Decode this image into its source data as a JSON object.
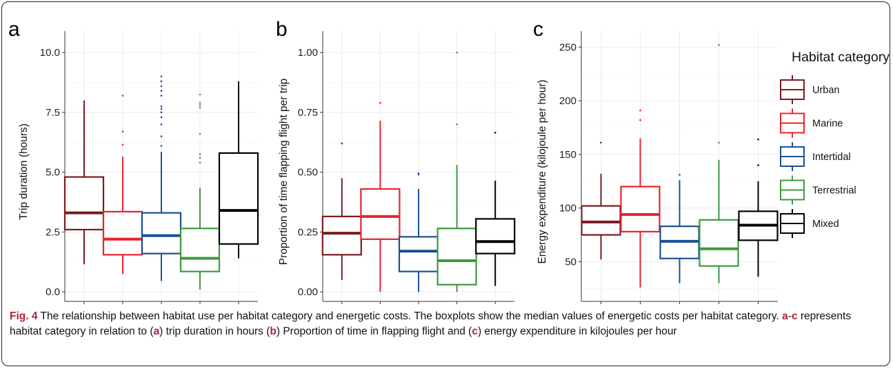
{
  "chart_data": [
    {
      "type": "box",
      "panel_letter": "a",
      "ylabel": "Trip duration (hours)",
      "ylim": [
        -0.4,
        10.9
      ],
      "yticks": [
        0.0,
        2.5,
        5.0,
        7.5,
        10.0
      ],
      "ytick_labels": [
        "0.0",
        "2.5",
        "5.0",
        "7.5",
        "10.0"
      ],
      "grid": true,
      "categories": [
        "Urban",
        "Marine",
        "Intertidal",
        "Terrestrial",
        "Mixed"
      ],
      "boxes": [
        {
          "lower_whisker": 1.15,
          "q1": 2.6,
          "median": 3.3,
          "q3": 4.8,
          "upper_whisker": 8.0,
          "outliers": []
        },
        {
          "lower_whisker": 0.75,
          "q1": 1.55,
          "median": 2.2,
          "q3": 3.35,
          "upper_whisker": 5.65,
          "outliers": [
            6.15,
            6.7,
            8.2
          ]
        },
        {
          "lower_whisker": 0.45,
          "q1": 1.6,
          "median": 2.35,
          "q3": 3.3,
          "upper_whisker": 5.85,
          "outliers": [
            6.1,
            6.5,
            7.0,
            7.3,
            7.5,
            7.65,
            7.75,
            8.2,
            8.4,
            8.6,
            8.8,
            9.0
          ]
        },
        {
          "lower_whisker": 0.1,
          "q1": 0.85,
          "median": 1.4,
          "q3": 2.65,
          "upper_whisker": 4.35,
          "outliers": [
            5.4,
            5.6,
            5.75,
            6.6,
            7.7,
            7.8,
            7.9,
            8.25
          ]
        },
        {
          "lower_whisker": 1.4,
          "q1": 2.0,
          "median": 3.4,
          "q3": 5.8,
          "upper_whisker": 8.8,
          "outliers": []
        }
      ]
    },
    {
      "type": "box",
      "panel_letter": "b",
      "ylabel": "Proportion of time flapping flight per trip",
      "ylim": [
        -0.04,
        1.09
      ],
      "yticks": [
        0.0,
        0.25,
        0.5,
        0.75,
        1.0
      ],
      "ytick_labels": [
        "0.00",
        "0.25",
        "0.50",
        "0.75",
        "1.00"
      ],
      "grid": true,
      "categories": [
        "Urban",
        "Marine",
        "Intertidal",
        "Terrestrial",
        "Mixed"
      ],
      "boxes": [
        {
          "lower_whisker": 0.05,
          "q1": 0.155,
          "median": 0.245,
          "q3": 0.315,
          "upper_whisker": 0.475,
          "outliers": [
            0.62
          ]
        },
        {
          "lower_whisker": 0.0,
          "q1": 0.22,
          "median": 0.315,
          "q3": 0.43,
          "upper_whisker": 0.715,
          "outliers": [
            0.79
          ]
        },
        {
          "lower_whisker": 0.0,
          "q1": 0.085,
          "median": 0.17,
          "q3": 0.23,
          "upper_whisker": 0.43,
          "outliers": [
            0.49,
            0.495
          ]
        },
        {
          "lower_whisker": 0.0,
          "q1": 0.03,
          "median": 0.13,
          "q3": 0.265,
          "upper_whisker": 0.53,
          "outliers": [
            0.7,
            1.0
          ]
        },
        {
          "lower_whisker": 0.025,
          "q1": 0.16,
          "median": 0.21,
          "q3": 0.305,
          "upper_whisker": 0.465,
          "outliers": [
            0.665
          ]
        }
      ]
    },
    {
      "type": "box",
      "panel_letter": "c",
      "ylabel": "Energy expenditure (kilojoule per hour)",
      "ylim": [
        13,
        265
      ],
      "yticks": [
        50,
        100,
        150,
        200,
        250
      ],
      "ytick_labels": [
        "50",
        "100",
        "150",
        "200",
        "250"
      ],
      "grid": true,
      "categories": [
        "Urban",
        "Marine",
        "Intertidal",
        "Terrestrial",
        "Mixed"
      ],
      "boxes": [
        {
          "lower_whisker": 52,
          "q1": 75,
          "median": 87,
          "q3": 102,
          "upper_whisker": 132,
          "outliers": [
            161
          ]
        },
        {
          "lower_whisker": 26,
          "q1": 78,
          "median": 94,
          "q3": 120,
          "upper_whisker": 165,
          "outliers": [
            182,
            191
          ]
        },
        {
          "lower_whisker": 30,
          "q1": 53,
          "median": 69,
          "q3": 83,
          "upper_whisker": 126,
          "outliers": [
            131
          ]
        },
        {
          "lower_whisker": 30,
          "q1": 46,
          "median": 62,
          "q3": 89,
          "upper_whisker": 145,
          "outliers": [
            161,
            252
          ]
        },
        {
          "lower_whisker": 36,
          "q1": 70,
          "median": 84,
          "q3": 97,
          "upper_whisker": 125,
          "outliers": [
            140,
            164
          ]
        }
      ]
    }
  ],
  "legend": {
    "title": "Habitat category",
    "placement": "right",
    "items": [
      {
        "label": "Urban",
        "color": "#7b1a1f"
      },
      {
        "label": "Marine",
        "color": "#e8222b"
      },
      {
        "label": "Intertidal",
        "color": "#1a4f93"
      },
      {
        "label": "Terrestrial",
        "color": "#3b9a3f"
      },
      {
        "label": "Mixed",
        "color": "#000000"
      }
    ]
  },
  "colors": {
    "grid": "#ebebeb",
    "axis": "#333333",
    "caption_accent": "#b22235"
  },
  "caption": {
    "fig_label": "Fig. 4",
    "text_1": " The relationship between habitat use per habitat category and energetic costs. The boxplots show the median values of energetic costs per habitat category. ",
    "ref_a": "a",
    "dash": "-",
    "ref_c": "c",
    "text_2": " represents habitat category in relation to (",
    "ref_a2": "a",
    "text_3": ") trip duration in hours (",
    "ref_b": "b",
    "text_4": ") Proportion of time in flapping flight and (",
    "ref_c2": "c",
    "text_5": ") energy expenditure in kilojoules per hour"
  }
}
